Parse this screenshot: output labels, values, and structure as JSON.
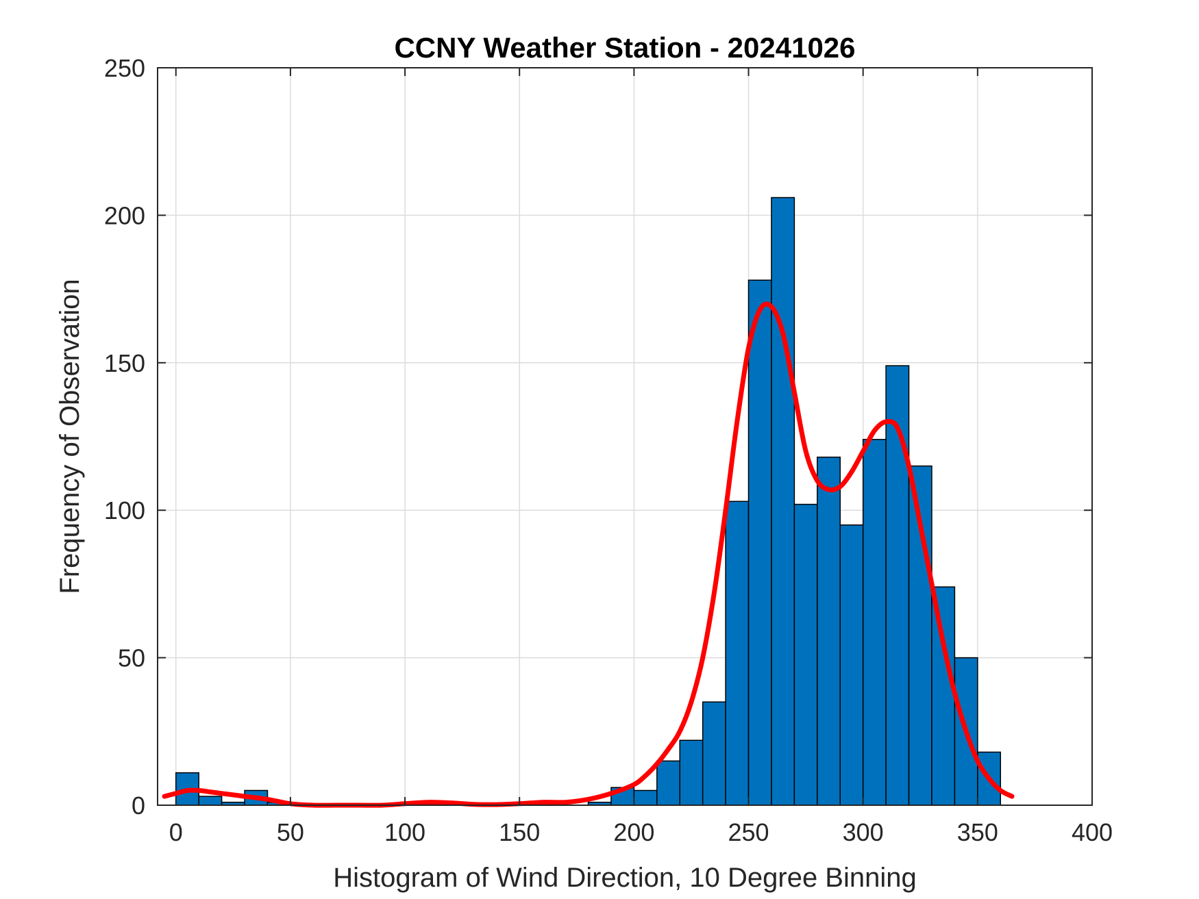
{
  "chart_data": {
    "type": "bar",
    "title": "CCNY Weather Station - 20241026",
    "xlabel": "Histogram of Wind Direction, 10 Degree Binning",
    "ylabel": "Frequency of Observation",
    "xlim": [
      -8,
      400
    ],
    "ylim": [
      0,
      250
    ],
    "xticks": [
      0,
      50,
      100,
      150,
      200,
      250,
      300,
      350,
      400
    ],
    "yticks": [
      0,
      50,
      100,
      150,
      200,
      250
    ],
    "grid": true,
    "bin_width": 10,
    "bin_edges": [
      0,
      10,
      20,
      30,
      40,
      50,
      60,
      70,
      80,
      90,
      100,
      110,
      120,
      130,
      140,
      150,
      160,
      170,
      180,
      190,
      200,
      210,
      220,
      230,
      240,
      250,
      260,
      270,
      280,
      290,
      300,
      310,
      320,
      330,
      340,
      350,
      360
    ],
    "values": [
      11,
      3,
      1,
      5,
      1,
      0,
      0,
      0,
      0,
      0,
      0,
      0,
      0,
      0,
      0,
      0,
      0,
      0,
      1,
      6,
      5,
      15,
      22,
      35,
      103,
      178,
      206,
      102,
      118,
      95,
      124,
      149,
      115,
      74,
      50,
      18
    ],
    "bar_color": "#0072BD",
    "series": [
      {
        "type": "line",
        "color": "#FF0000",
        "x": [
          -5,
          0,
          5,
          10,
          15,
          20,
          30,
          40,
          50,
          60,
          70,
          80,
          90,
          100,
          110,
          120,
          130,
          140,
          150,
          160,
          170,
          180,
          190,
          200,
          205,
          210,
          215,
          220,
          225,
          230,
          235,
          240,
          245,
          250,
          255,
          260,
          265,
          270,
          275,
          280,
          285,
          290,
          295,
          300,
          305,
          310,
          315,
          320,
          325,
          330,
          335,
          340,
          345,
          350,
          355,
          360,
          365
        ],
        "y": [
          3,
          4,
          5,
          5,
          4.5,
          4,
          3,
          2,
          0.5,
          0,
          0,
          0,
          0,
          0.5,
          1,
          0.8,
          0.3,
          0.2,
          0.5,
          1,
          1,
          2,
          4,
          7,
          10,
          14,
          19,
          25,
          35,
          50,
          72,
          100,
          130,
          155,
          168,
          169,
          160,
          140,
          120,
          110,
          107,
          108,
          113,
          120,
          127,
          130,
          128,
          115,
          95,
          75,
          55,
          38,
          25,
          15,
          9,
          5,
          3
        ]
      }
    ]
  }
}
